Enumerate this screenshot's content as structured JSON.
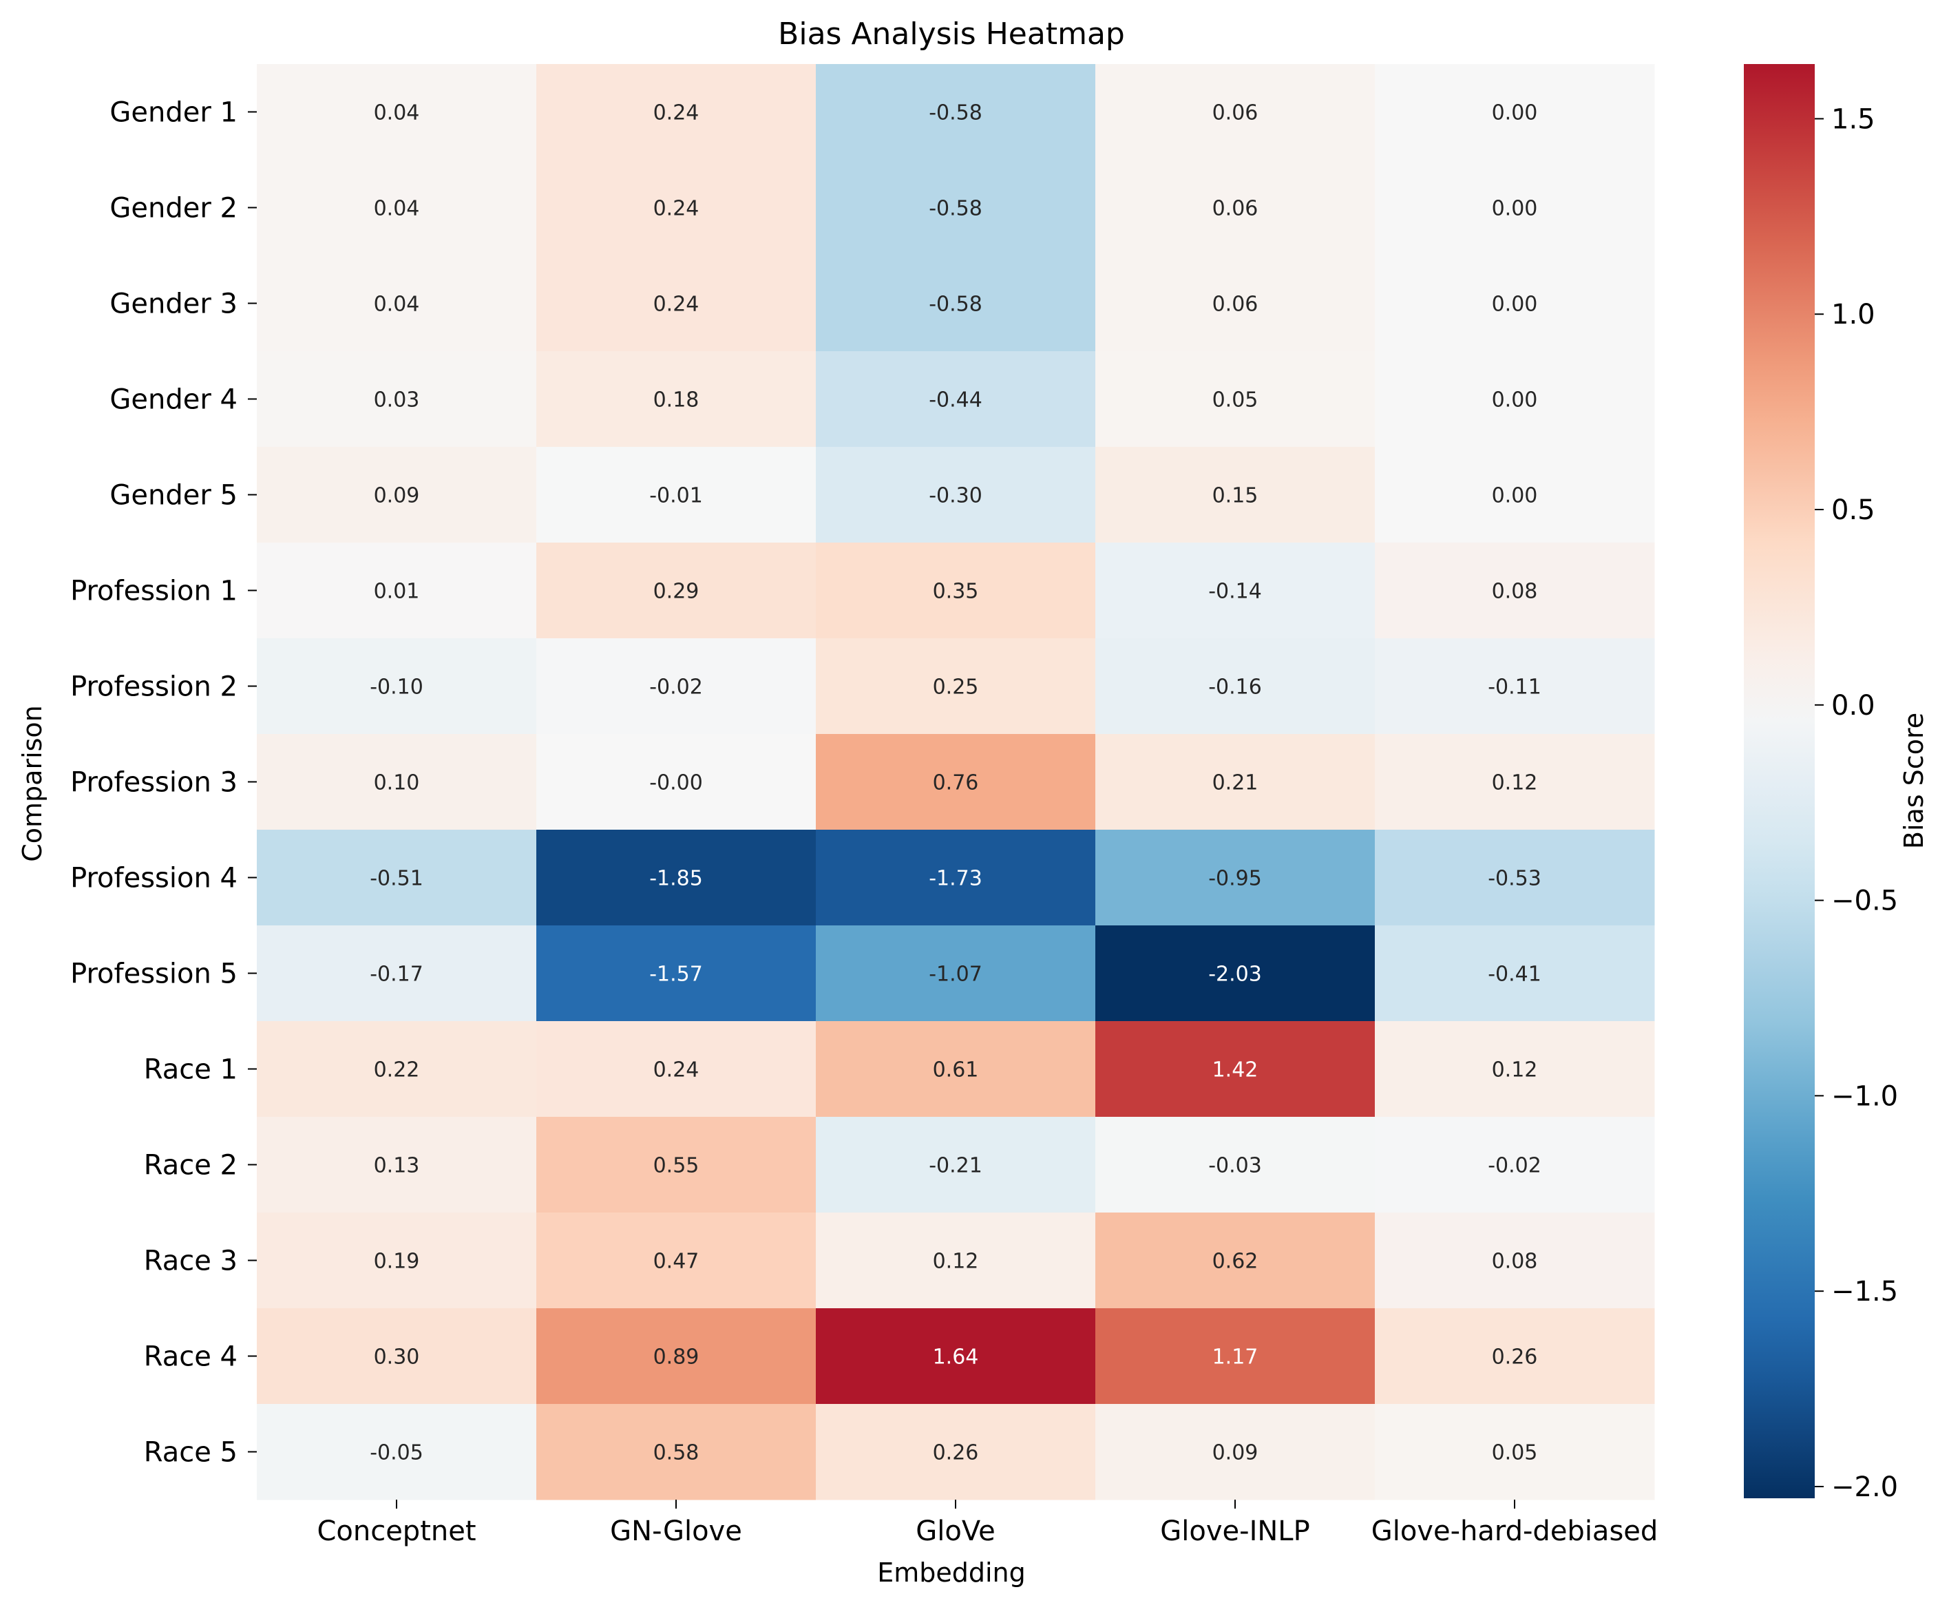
{
  "chart_data": {
    "type": "heatmap",
    "title": "Bias Analysis Heatmap",
    "xlabel": "Embedding",
    "ylabel": "Comparison",
    "colorbar_label": "Bias Score",
    "colormap": "RdBu_r",
    "vmin": -2.03,
    "vmax": 1.64,
    "colorbar_ticks": [
      1.5,
      1.0,
      0.5,
      0.0,
      -0.5,
      -1.0,
      -1.5,
      -2.0
    ],
    "colorbar_tick_labels": [
      "1.5",
      "1.0",
      "0.5",
      "0.0",
      "−0.5",
      "−1.0",
      "−1.5",
      "−2.0"
    ],
    "columns": [
      "Conceptnet",
      "GN-Glove",
      "GloVe",
      "Glove-INLP",
      "Glove-hard-debiased"
    ],
    "rows": [
      "Gender 1",
      "Gender 2",
      "Gender 3",
      "Gender 4",
      "Gender 5",
      "Profession 1",
      "Profession 2",
      "Profession 3",
      "Profession 4",
      "Profession 5",
      "Race 1",
      "Race 2",
      "Race 3",
      "Race 4",
      "Race 5"
    ],
    "values": [
      [
        0.04,
        0.24,
        -0.58,
        0.06,
        0.0
      ],
      [
        0.04,
        0.24,
        -0.58,
        0.06,
        0.0
      ],
      [
        0.04,
        0.24,
        -0.58,
        0.06,
        0.0
      ],
      [
        0.03,
        0.18,
        -0.44,
        0.05,
        0.0
      ],
      [
        0.09,
        -0.01,
        -0.3,
        0.15,
        0.0
      ],
      [
        0.01,
        0.29,
        0.35,
        -0.14,
        0.08
      ],
      [
        -0.1,
        -0.02,
        0.25,
        -0.16,
        -0.11
      ],
      [
        0.1,
        -0.0,
        0.76,
        0.21,
        0.12
      ],
      [
        -0.51,
        -1.85,
        -1.73,
        -0.95,
        -0.53
      ],
      [
        -0.17,
        -1.57,
        -1.07,
        -2.03,
        -0.41
      ],
      [
        0.22,
        0.24,
        0.61,
        1.42,
        0.12
      ],
      [
        0.13,
        0.55,
        -0.21,
        -0.03,
        -0.02
      ],
      [
        0.19,
        0.47,
        0.12,
        0.62,
        0.08
      ],
      [
        0.3,
        0.89,
        1.64,
        1.17,
        0.26
      ],
      [
        -0.05,
        0.58,
        0.26,
        0.09,
        0.05
      ]
    ],
    "annotation_format": "0.00"
  }
}
